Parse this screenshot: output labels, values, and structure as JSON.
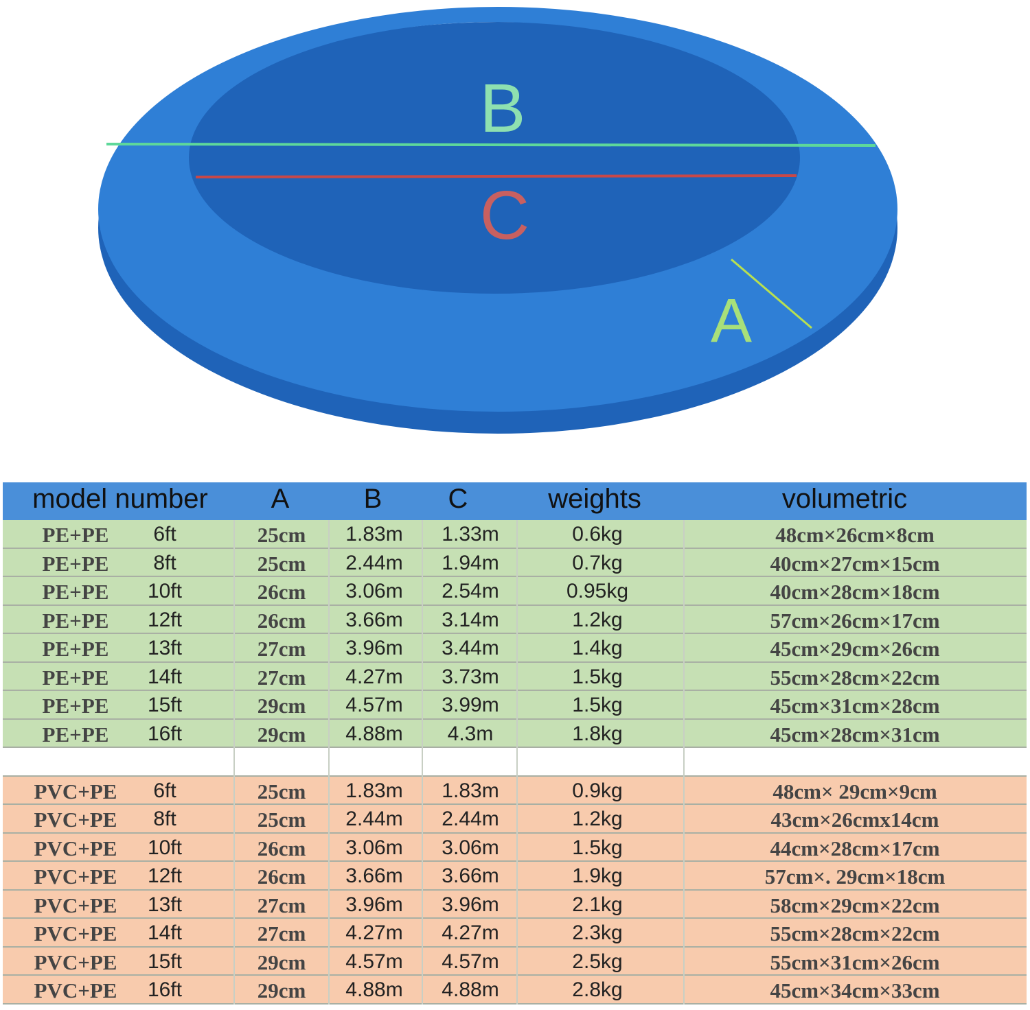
{
  "diagram": {
    "labels": {
      "b": "B",
      "c": "C",
      "a": "A"
    }
  },
  "table": {
    "header": [
      "model number",
      "A",
      "B",
      "C",
      "weights",
      "volumetric"
    ],
    "pe_rows": [
      [
        "PE+PE",
        "6ft",
        "25cm",
        "1.83m",
        "1.33m",
        "0.6kg",
        "48cm×26cm×8cm"
      ],
      [
        "PE+PE",
        "8ft",
        "25cm",
        "2.44m",
        "1.94m",
        "0.7kg",
        "40cm×27cm×15cm"
      ],
      [
        "PE+PE",
        "10ft",
        "26cm",
        "3.06m",
        "2.54m",
        "0.95kg",
        "40cm×28cm×18cm"
      ],
      [
        "PE+PE",
        "12ft",
        "26cm",
        "3.66m",
        "3.14m",
        "1.2kg",
        "57cm×26cm×17cm"
      ],
      [
        "PE+PE",
        "13ft",
        "27cm",
        "3.96m",
        "3.44m",
        "1.4kg",
        "45cm×29cm×26cm"
      ],
      [
        "PE+PE",
        "14ft",
        "27cm",
        "4.27m",
        "3.73m",
        "1.5kg",
        "55cm×28cm×22cm"
      ],
      [
        "PE+PE",
        "15ft",
        "29cm",
        "4.57m",
        "3.99m",
        "1.5kg",
        "45cm×31cm×28cm"
      ],
      [
        "PE+PE",
        "16ft",
        "29cm",
        "4.88m",
        "4.3m",
        "1.8kg",
        "45cm×28cm×31cm"
      ]
    ],
    "pvc_rows": [
      [
        "PVC+PE",
        "6ft",
        "25cm",
        "1.83m",
        "1.83m",
        "0.9kg",
        "48cm× 29cm×9cm"
      ],
      [
        "PVC+PE",
        "8ft",
        "25cm",
        "2.44m",
        "2.44m",
        "1.2kg",
        "43cm×26cmx14cm"
      ],
      [
        "PVC+PE",
        "10ft",
        "26cm",
        "3.06m",
        "3.06m",
        "1.5kg",
        "44cm×28cm×17cm"
      ],
      [
        "PVC+PE",
        "12ft",
        "26cm",
        "3.66m",
        "3.66m",
        "1.9kg",
        "57cm×. 29cm×18cm"
      ],
      [
        "PVC+PE",
        "13ft",
        "27cm",
        "3.96m",
        "3.96m",
        "2.1kg",
        "58cm×29cm×22cm"
      ],
      [
        "PVC+PE",
        "14ft",
        "27cm",
        "4.27m",
        "4.27m",
        "2.3kg",
        "55cm×28cm×22cm"
      ],
      [
        "PVC+PE",
        "15ft",
        "29cm",
        "4.57m",
        "4.57m",
        "2.5kg",
        "55cm×31cm×26cm"
      ],
      [
        "PVC+PE",
        "16ft",
        "29cm",
        "4.88m",
        "4.88m",
        "2.8kg",
        "45cm×34cm×33cm"
      ]
    ]
  }
}
